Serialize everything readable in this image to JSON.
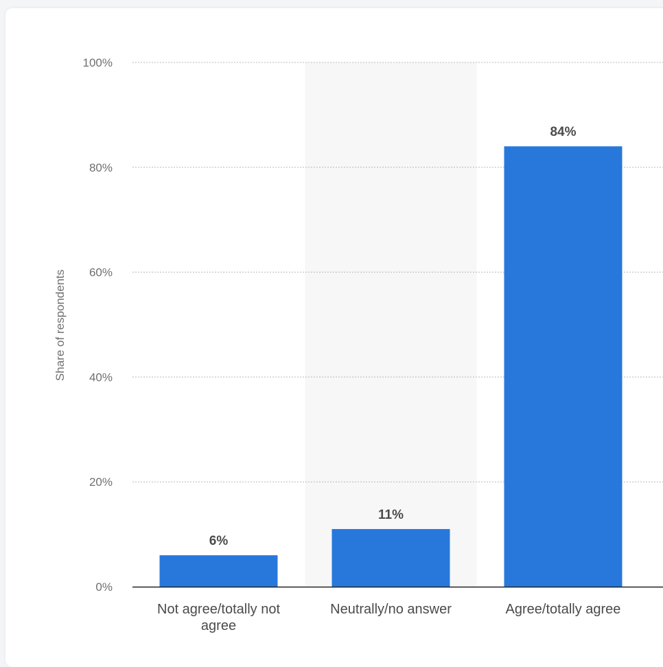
{
  "chart_data": {
    "type": "bar",
    "categories": [
      [
        "Not agree/totally not",
        "agree"
      ],
      [
        "Neutrally/no answer"
      ],
      [
        "Agree/totally agree"
      ]
    ],
    "values": [
      6,
      11,
      84
    ],
    "value_labels": [
      "6%",
      "11%",
      "84%"
    ],
    "ylabel": "Share of respondents",
    "ylim": [
      0,
      100
    ],
    "yticks": [
      "0%",
      "20%",
      "40%",
      "60%",
      "80%",
      "100%"
    ],
    "ytick_values": [
      0,
      20,
      40,
      60,
      80,
      100
    ],
    "grid": true,
    "highlighted_category_index": 1
  },
  "colors": {
    "bar": "#2878dc",
    "grid": "#b5b5b5",
    "highlight": "#f7f7f8",
    "axis": "#222222"
  }
}
